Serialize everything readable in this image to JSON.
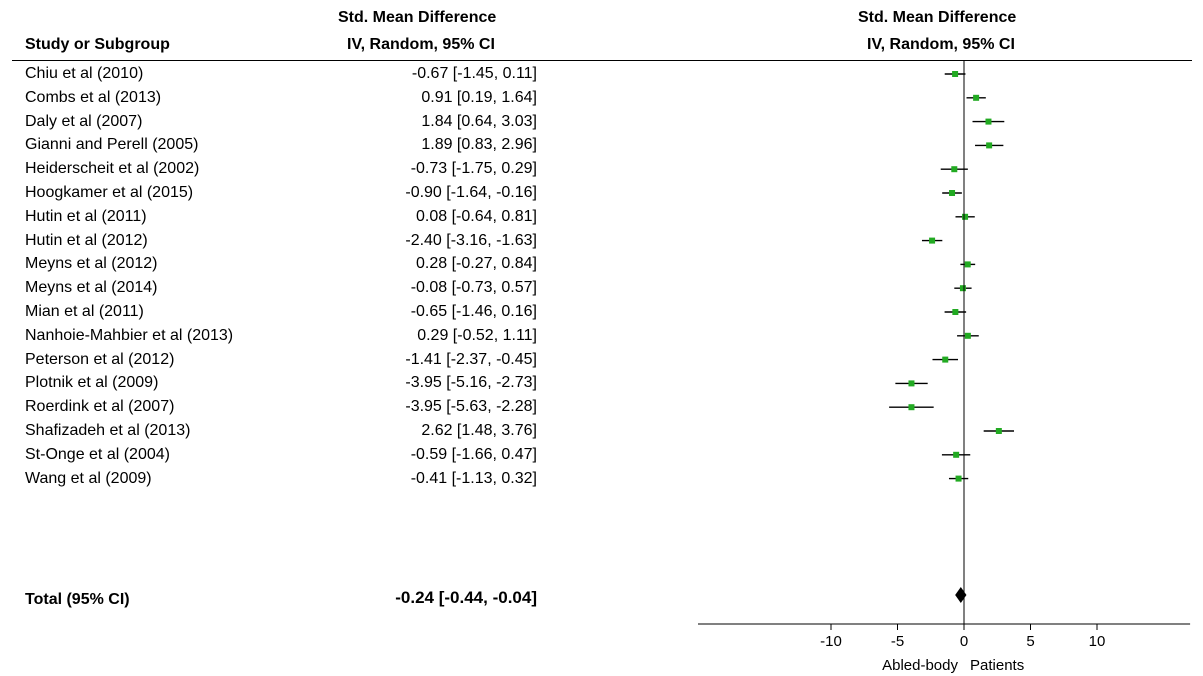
{
  "headers": {
    "study_col": "Study or Subgroup",
    "est_col_line1": "Std. Mean Difference",
    "est_col_line2": "IV, Random, 95% CI",
    "plot_col_line1": "Std. Mean Difference",
    "plot_col_line2": "IV, Random, 95% CI"
  },
  "total": {
    "label": "Total (95% CI)",
    "text": "-0.24 [-0.44, -0.04]"
  },
  "axis_caption": {
    "left": "Abled-body",
    "right": "Patients"
  },
  "colors": {
    "point": "#22aa22",
    "diamond": "#000000",
    "line": "#000000"
  },
  "chart_data": {
    "type": "scatter",
    "title": "",
    "xlabel": "",
    "ylabel": "",
    "xlim": [
      -20,
      17
    ],
    "xticks": [
      -10,
      -5,
      0,
      5,
      10
    ],
    "grid": false,
    "studies": [
      {
        "name": "Chiu et al (2010)",
        "text": "-0.67 [-1.45, 0.11]",
        "est": -0.67,
        "lo": -1.45,
        "hi": 0.11
      },
      {
        "name": "Combs et al (2013)",
        "text": "0.91 [0.19, 1.64]",
        "est": 0.91,
        "lo": 0.19,
        "hi": 1.64
      },
      {
        "name": "Daly et al (2007)",
        "text": "1.84 [0.64, 3.03]",
        "est": 1.84,
        "lo": 0.64,
        "hi": 3.03
      },
      {
        "name": "Gianni and Perell (2005)",
        "text": "1.89 [0.83, 2.96]",
        "est": 1.89,
        "lo": 0.83,
        "hi": 2.96
      },
      {
        "name": "Heiderscheit et al (2002)",
        "text": "-0.73 [-1.75, 0.29]",
        "est": -0.73,
        "lo": -1.75,
        "hi": 0.29
      },
      {
        "name": "Hoogkamer et al (2015)",
        "text": "-0.90 [-1.64, -0.16]",
        "est": -0.9,
        "lo": -1.64,
        "hi": -0.16
      },
      {
        "name": "Hutin et al (2011)",
        "text": "0.08 [-0.64, 0.81]",
        "est": 0.08,
        "lo": -0.64,
        "hi": 0.81
      },
      {
        "name": "Hutin et al (2012)",
        "text": "-2.40 [-3.16, -1.63]",
        "est": -2.4,
        "lo": -3.16,
        "hi": -1.63
      },
      {
        "name": "Meyns et al (2012)",
        "text": "0.28 [-0.27, 0.84]",
        "est": 0.28,
        "lo": -0.27,
        "hi": 0.84
      },
      {
        "name": "Meyns et al (2014)",
        "text": "-0.08 [-0.73, 0.57]",
        "est": -0.08,
        "lo": -0.73,
        "hi": 0.57
      },
      {
        "name": "Mian et al (2011)",
        "text": "-0.65 [-1.46, 0.16]",
        "est": -0.65,
        "lo": -1.46,
        "hi": 0.16
      },
      {
        "name": "Nanhoie-Mahbier et al (2013)",
        "text": "0.29 [-0.52, 1.11]",
        "est": 0.29,
        "lo": -0.52,
        "hi": 1.11
      },
      {
        "name": "Peterson et al (2012)",
        "text": "-1.41 [-2.37, -0.45]",
        "est": -1.41,
        "lo": -2.37,
        "hi": -0.45
      },
      {
        "name": "Plotnik et al (2009)",
        "text": "-3.95 [-5.16, -2.73]",
        "est": -3.95,
        "lo": -5.16,
        "hi": -2.73
      },
      {
        "name": "Roerdink et al (2007)",
        "text": "-3.95 [-5.63, -2.28]",
        "est": -3.95,
        "lo": -5.63,
        "hi": -2.28
      },
      {
        "name": "Shafizadeh et al (2013)",
        "text": "2.62 [1.48, 3.76]",
        "est": 2.62,
        "lo": 1.48,
        "hi": 3.76
      },
      {
        "name": "St-Onge et al (2004)",
        "text": "-0.59 [-1.66, 0.47]",
        "est": -0.59,
        "lo": -1.66,
        "hi": 0.47
      },
      {
        "name": "Wang et al (2009)",
        "text": "-0.41 [-1.13, 0.32]",
        "est": -0.41,
        "lo": -1.13,
        "hi": 0.32
      }
    ],
    "pooled": {
      "est": -0.24,
      "lo": -0.44,
      "hi": -0.04
    }
  }
}
